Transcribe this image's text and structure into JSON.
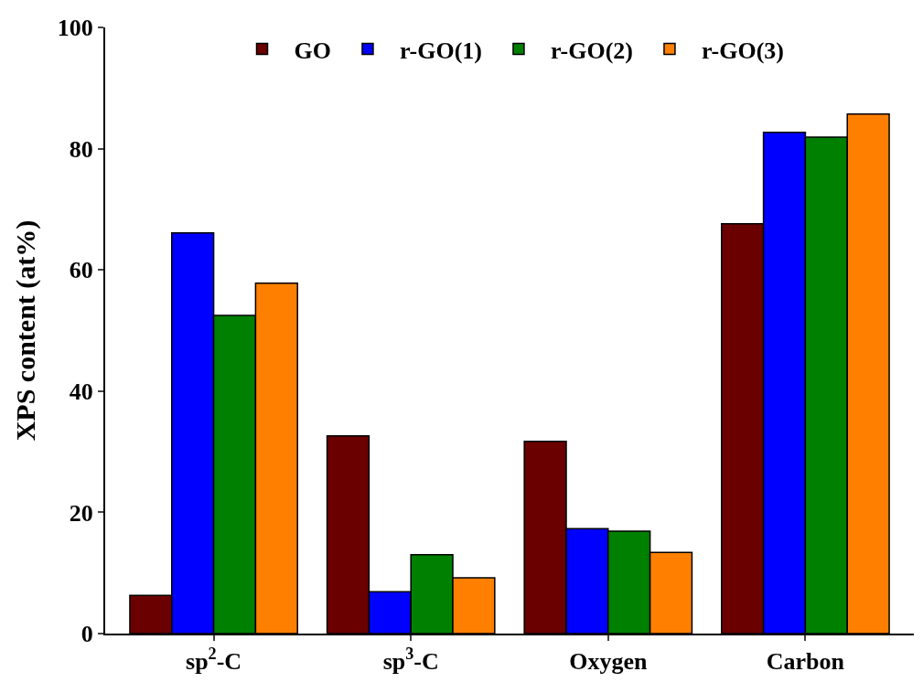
{
  "chart_data": {
    "type": "bar",
    "ylabel": "XPS content (at%)",
    "categories": [
      "sp$^{2}$-C",
      "sp$^{3}$-C",
      "Oxygen",
      "Carbon"
    ],
    "series": [
      {
        "name": "GO",
        "color": "#6b0000",
        "values": [
          6.3,
          32.6,
          31.7,
          67.6
        ]
      },
      {
        "name": "r-GO(1)",
        "color": "#0000ff",
        "values": [
          66.1,
          6.9,
          17.3,
          82.7
        ]
      },
      {
        "name": "r-GO(2)",
        "color": "#008000",
        "values": [
          52.5,
          13.0,
          16.9,
          81.9
        ]
      },
      {
        "name": "r-GO(3)",
        "color": "#ff8000",
        "values": [
          57.8,
          9.2,
          13.4,
          85.7
        ]
      }
    ],
    "ylim": [
      0,
      100
    ],
    "yticks": [
      0,
      20,
      40,
      60,
      80,
      100
    ],
    "legend": "top"
  }
}
